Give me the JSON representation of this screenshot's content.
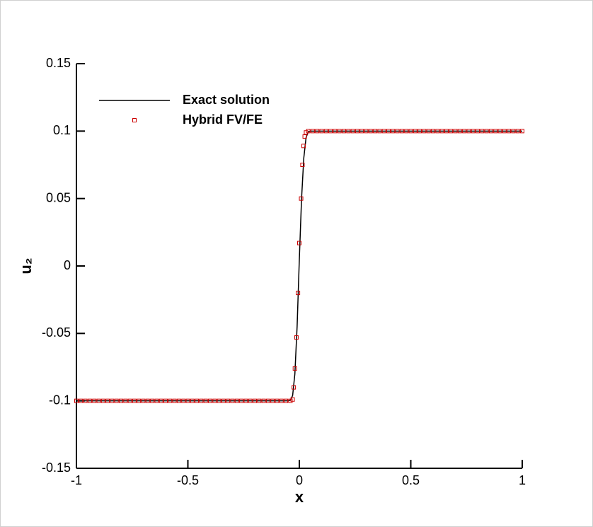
{
  "chart_data": {
    "type": "line",
    "xlabel": "x",
    "ylabel": "u₂",
    "xlim": [
      -1,
      1
    ],
    "ylim": [
      -0.15,
      0.15
    ],
    "xticks": [
      -1,
      -0.5,
      0,
      0.5,
      1
    ],
    "yticks": [
      -0.15,
      -0.1,
      -0.05,
      0,
      0.05,
      0.1,
      0.15
    ],
    "legend": "upper left",
    "series": [
      {
        "name": "Exact solution",
        "color": "#000000",
        "style": "line",
        "x": [
          -1,
          -0.05,
          -0.04,
          -0.03,
          -0.02,
          -0.01,
          0,
          0.01,
          0.02,
          0.03,
          0.04,
          0.05,
          1
        ],
        "values": [
          -0.1,
          -0.1,
          -0.0995,
          -0.096,
          -0.08,
          -0.045,
          0.005,
          0.05,
          0.08,
          0.095,
          0.0995,
          0.1,
          0.1
        ]
      },
      {
        "name": "Hybrid FV/FE",
        "color": "#cc0000",
        "style": "marker",
        "x": [
          -1,
          -0.98,
          -0.96,
          -0.94,
          -0.92,
          -0.9,
          -0.88,
          -0.86,
          -0.84,
          -0.82,
          -0.8,
          -0.78,
          -0.76,
          -0.74,
          -0.72,
          -0.7,
          -0.68,
          -0.66,
          -0.64,
          -0.62,
          -0.6,
          -0.58,
          -0.56,
          -0.54,
          -0.52,
          -0.5,
          -0.48,
          -0.46,
          -0.44,
          -0.42,
          -0.4,
          -0.38,
          -0.36,
          -0.34,
          -0.32,
          -0.3,
          -0.28,
          -0.26,
          -0.24,
          -0.22,
          -0.2,
          -0.18,
          -0.16,
          -0.14,
          -0.12,
          -0.1,
          -0.08,
          -0.06,
          -0.04,
          -0.03,
          -0.025,
          -0.02,
          -0.013,
          -0.006,
          0,
          0.008,
          0.014,
          0.019,
          0.024,
          0.03,
          0.04,
          0.06,
          0.08,
          0.1,
          0.12,
          0.14,
          0.16,
          0.18,
          0.2,
          0.22,
          0.24,
          0.26,
          0.28,
          0.3,
          0.32,
          0.34,
          0.36,
          0.38,
          0.4,
          0.42,
          0.44,
          0.46,
          0.48,
          0.5,
          0.52,
          0.54,
          0.56,
          0.58,
          0.6,
          0.62,
          0.64,
          0.66,
          0.68,
          0.7,
          0.72,
          0.74,
          0.76,
          0.78,
          0.8,
          0.82,
          0.84,
          0.86,
          0.88,
          0.9,
          0.92,
          0.94,
          0.96,
          0.98,
          1
        ],
        "values": [
          -0.1,
          -0.1,
          -0.1,
          -0.1,
          -0.1,
          -0.1,
          -0.1,
          -0.1,
          -0.1,
          -0.1,
          -0.1,
          -0.1,
          -0.1,
          -0.1,
          -0.1,
          -0.1,
          -0.1,
          -0.1,
          -0.1,
          -0.1,
          -0.1,
          -0.1,
          -0.1,
          -0.1,
          -0.1,
          -0.1,
          -0.1,
          -0.1,
          -0.1,
          -0.1,
          -0.1,
          -0.1,
          -0.1,
          -0.1,
          -0.1,
          -0.1,
          -0.1,
          -0.1,
          -0.1,
          -0.1,
          -0.1,
          -0.1,
          -0.1,
          -0.1,
          -0.1,
          -0.1,
          -0.1,
          -0.1,
          -0.1,
          -0.099,
          -0.09,
          -0.076,
          -0.053,
          -0.02,
          0.017,
          0.05,
          0.075,
          0.089,
          0.096,
          0.099,
          0.1,
          0.1,
          0.1,
          0.1,
          0.1,
          0.1,
          0.1,
          0.1,
          0.1,
          0.1,
          0.1,
          0.1,
          0.1,
          0.1,
          0.1,
          0.1,
          0.1,
          0.1,
          0.1,
          0.1,
          0.1,
          0.1,
          0.1,
          0.1,
          0.1,
          0.1,
          0.1,
          0.1,
          0.1,
          0.1,
          0.1,
          0.1,
          0.1,
          0.1,
          0.1,
          0.1,
          0.1,
          0.1,
          0.1,
          0.1,
          0.1,
          0.1,
          0.1,
          0.1,
          0.1,
          0.1,
          0.1,
          0.1,
          0.1
        ]
      }
    ]
  }
}
